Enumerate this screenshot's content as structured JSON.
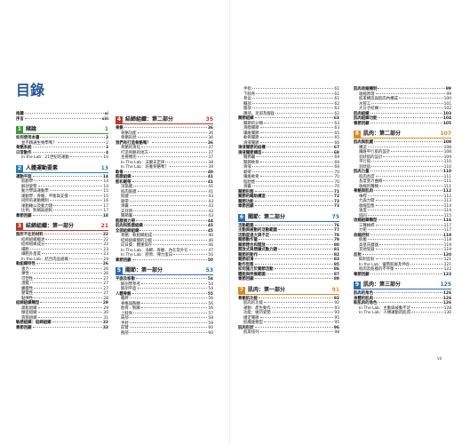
{
  "title": "目錄",
  "page_number": "vii",
  "columns": [
    [
      {
        "label": "推薦",
        "page": "xi"
      },
      {
        "label": "序言",
        "page": "xiii"
      },
      {
        "number": "1",
        "label": "緒論",
        "page": 1,
        "color": "#3a9a3a"
      },
      {
        "label": "如何使用本書",
        "page": 2,
        "items": [
          {
            "label": "並不精通生物學嗎？",
            "page": 2
          }
        ]
      },
      {
        "label": "骨骼系統",
        "page": 3
      },
      {
        "label": "日常動作",
        "page": 4,
        "items": [
          {
            "label": "In the Lab：21世紀的運動",
            "page": 10
          }
        ]
      },
      {
        "number": "2",
        "label": "人體運動要素",
        "page": 13,
        "color": "#2a7fb8"
      },
      {
        "label": "運動平面",
        "page": 14,
        "items": [
          {
            "label": "肌動學",
            "page": 14
          },
          {
            "label": "解剖姿勢",
            "page": 14
          },
          {
            "label": "動力學與運動學",
            "page": 15
          },
          {
            "label": "運動學：骨骼、平衡與支撐",
            "page": 15
          },
          {
            "label": "同時的運動機制",
            "page": 16
          },
          {
            "label": "運動軸以及動力鏈",
            "page": 17
          },
          {
            "label": "比例、對稱與規則",
            "page": 17
          }
        ]
      },
      {
        "label": "章節回顧",
        "page": 18
      },
      {
        "number": "3",
        "label": "結締組織：第一部分",
        "page": 21,
        "color": "#c0392b"
      },
      {
        "label": "無所不在的材料",
        "page": 22,
        "items": [
          {
            "label": "結締組織概述",
            "page": 22
          },
          {
            "label": "結締組織成分",
            "page": 22
          },
          {
            "label": "細胞",
            "page": 23
          },
          {
            "label": "細胞外基質",
            "page": 23
          },
          {
            "label": "In the Lab：結合肉品組織",
            "page": 24
          }
        ]
      },
      {
        "label": "軟組織特性",
        "page": 26,
        "items": [
          {
            "label": "張力",
            "page": 26
          },
          {
            "label": "彈性",
            "page": 26
          },
          {
            "label": "可塑性",
            "page": 27
          },
          {
            "label": "潛變",
            "page": 27
          },
          {
            "label": "觸變性",
            "page": 27
          },
          {
            "label": "壓電性",
            "page": 27
          },
          {
            "label": "黏彈性",
            "page": 28
          }
        ]
      },
      {
        "label": "結締組織類型",
        "page": 29,
        "items": [
          {
            "label": "疏鬆組織",
            "page": 29
          },
          {
            "label": "緻密組織",
            "page": 30
          },
          {
            "label": "液態組織",
            "page": 31
          }
        ]
      },
      {
        "label": "敏感組織：結締組織",
        "page": 32
      },
      {
        "label": "章節回顧",
        "page": 33
      }
    ],
    [
      {
        "number": "4",
        "label": "結締組織：第二部分",
        "page": 35,
        "color": "#c0392b"
      },
      {
        "label": "骨骼",
        "page": 36,
        "items": [
          {
            "label": "骨骼功能",
            "page": 36
          },
          {
            "label": "骨骼形狀",
            "page": 36
          }
        ]
      },
      {
        "label": "我們有打造骨骼嗎？",
        "page": 36,
        "items": [
          {
            "label": "骨骼的演化",
            "page": 37
          },
          {
            "label": "打造骨骼的地方",
            "page": 37
          },
          {
            "label": "主要類別",
            "page": 37
          },
          {
            "label": "In The Lab：沃爾夫定律",
            "page": 38
          },
          {
            "label": "In The Lab：培養骨骼嗎？",
            "page": 39
          }
        ]
      },
      {
        "label": "軟骨",
        "page": 40
      },
      {
        "label": "筋膜組織",
        "page": 41
      },
      {
        "label": "筋和韌帶",
        "page": 41,
        "items": [
          {
            "label": "深筋膜",
            "page": 41
          },
          {
            "label": "肌肉筋膜",
            "page": 41
          },
          {
            "label": "肌腱",
            "page": 43
          },
          {
            "label": "韌帶",
            "page": 43
          },
          {
            "label": "滑囊",
            "page": 43
          },
          {
            "label": "支持帶",
            "page": 43
          },
          {
            "label": "關節囊",
            "page": 43
          }
        ]
      },
      {
        "label": "筋膜張力帶",
        "page": 44
      },
      {
        "label": "肌肉和筋膜組織",
        "page": 45
      },
      {
        "label": "全部結締組織",
        "page": 45,
        "items": [
          {
            "label": "骨骼：軟組織組成",
            "page": 46
          },
          {
            "label": "結締組織間的功能",
            "page": 46
          },
          {
            "label": "向日葵：體重保存",
            "page": 46
          },
          {
            "label": "In The Lab：海綿、骨骼、內在及外在",
            "page": 47
          },
          {
            "label": "In The Lab：膠原、彈力蛋白",
            "page": 50
          }
        ]
      },
      {
        "label": "章節回顧",
        "page": 50
      },
      {
        "number": "5",
        "label": "關節：第一部分",
        "page": 53,
        "color": "#2a6fb8"
      },
      {
        "label": "平面及移動",
        "page": 54,
        "items": [
          {
            "label": "解剖學參考",
            "page": 54
          },
          {
            "label": "解剖平面",
            "page": 54
          }
        ]
      },
      {
        "label": "人體骨骼",
        "page": 55,
        "items": [
          {
            "label": "軀幹",
            "page": 56
          },
          {
            "label": "脊椎與胸廓",
            "page": 56
          },
          {
            "label": "肋骨／胸廓",
            "page": 56
          },
          {
            "label": "上肢骨",
            "page": 57
          },
          {
            "label": "肩部",
            "page": 58
          },
          {
            "label": "手肘",
            "page": 59
          },
          {
            "label": "前臂",
            "page": 60
          },
          {
            "label": "腕部",
            "page": 60
          }
        ]
      }
    ],
    [
      {
        "items": [
          {
            "label": "手指",
            "page": 61
          },
          {
            "label": "下肢骨",
            "page": 61
          },
          {
            "label": "骨盆",
            "page": 61
          },
          {
            "label": "髖部",
            "page": 62
          },
          {
            "label": "膝部",
            "page": 62
          },
          {
            "label": "踝部、足部及腳趾",
            "page": 62
          }
        ]
      },
      {
        "label": "關節組織",
        "page": 63,
        "items": [
          {
            "label": "關節的分類",
            "page": 63
          },
          {
            "label": "滑膜關節",
            "page": 63
          },
          {
            "label": "纖維關節",
            "page": 65
          },
          {
            "label": "軟骨關節",
            "page": 65
          },
          {
            "label": "滑液關節",
            "page": 66
          }
        ]
      },
      {
        "label": "滑液關節的結構",
        "page": 67
      },
      {
        "label": "滑液關節構造",
        "page": 68,
        "items": [
          {
            "label": "關節囊",
            "page": 69
          },
          {
            "label": "關節軟骨",
            "page": 69
          },
          {
            "label": "滑液",
            "page": 69
          },
          {
            "label": "韌帶",
            "page": 70
          },
          {
            "label": "纖維軟骨",
            "page": 70
          },
          {
            "label": "脂肪墊",
            "page": 70
          },
          {
            "label": "滑囊",
            "page": 70
          }
        ]
      },
      {
        "label": "關節形態",
        "page": 71
      },
      {
        "label": "關節的輔助構造",
        "page": 72
      },
      {
        "label": "關節功能",
        "page": 73
      },
      {
        "label": "章節回顧",
        "page": 73
      },
      {
        "number": "6",
        "label": "關節：第二部分",
        "page": 75,
        "color": "#2a6fb8"
      },
      {
        "label": "活動範圍",
        "page": 76
      },
      {
        "label": "主動與被動的活動範圍",
        "page": 77
      },
      {
        "label": "活動度過大與不足",
        "page": 78
      },
      {
        "label": "關節動作量",
        "page": 79
      },
      {
        "label": "關節閉合和開放",
        "page": 80
      },
      {
        "label": "開放式與閉鎖式動力鏈",
        "page": 81
      },
      {
        "label": "關節的動作",
        "page": 82
      },
      {
        "label": "關節前滑",
        "page": 83
      },
      {
        "label": "動作型態",
        "page": 85
      },
      {
        "label": "如何施力於關節活動",
        "page": 86
      },
      {
        "label": "體能與伸展範圍",
        "page": 87
      },
      {
        "label": "章節回顧",
        "page": 89
      },
      {
        "number": "7",
        "label": "肌肉：第一部分",
        "page": 91,
        "color": "#e08a1e"
      },
      {
        "label": "骨骼肌功能",
        "page": 92,
        "items": [
          {
            "label": "肌肉的功能",
            "page": 92
          },
          {
            "label": "運動：產生動作",
            "page": 93
          },
          {
            "label": "功能：維持姿勢",
            "page": 93
          },
          {
            "label": "穩定關節",
            "page": 95
          },
          {
            "label": "肌纖維類型",
            "page": 95
          }
        ]
      },
      {
        "label": "肌肉形狀",
        "page": 96,
        "items": [
          {
            "label": "肌束排列",
            "page": 98
          }
        ]
      }
    ],
    [
      {
        "label": "肌肉收縮機制",
        "page": 99,
        "items": [
          {
            "label": "收縮原理",
            "page": 99
          },
          {
            "label": "肌束構造與肌肉內構成",
            "page": 100
          },
          {
            "label": "水管工",
            "page": 101
          },
          {
            "label": "大分子結構",
            "page": 102
          }
        ]
      },
      {
        "label": "肌肉組織",
        "page": 103
      },
      {
        "label": "肌肉組織功能",
        "page": 104
      },
      {
        "label": "章節回顧",
        "page": 105
      },
      {
        "number": "8",
        "label": "肌肉：第二部分",
        "page": 107,
        "color": "#e08a1e"
      },
      {
        "label": "肌肉與肌腱",
        "page": 108,
        "items": [
          {
            "label": "構造",
            "page": 108
          },
          {
            "label": "纖維平行肌的設計",
            "page": 108
          },
          {
            "label": "羽狀肌的設計",
            "page": 109
          },
          {
            "label": "平行肌",
            "page": 110
          },
          {
            "label": "羽狀肌",
            "page": 110
          }
        ]
      },
      {
        "label": "肌肉力量",
        "page": 110,
        "items": [
          {
            "label": "肌肉長度",
            "page": 111
          },
          {
            "label": "長度張力曲線",
            "page": 111
          },
          {
            "label": "收縮的種類",
            "page": 111
          }
        ]
      },
      {
        "label": "骨骼與肌肉",
        "page": 112,
        "items": [
          {
            "label": "槓桿",
            "page": 112
          },
          {
            "label": "力與力臂",
            "page": 113
          },
          {
            "label": "收縮型態",
            "page": 114
          },
          {
            "label": "速度",
            "page": 114
          },
          {
            "label": "協同",
            "page": 115
          }
        ]
      },
      {
        "label": "收縮組織類型",
        "page": 116,
        "items": [
          {
            "label": "三種槓桿",
            "page": 117
          },
          {
            "label": "力矩",
            "page": 117
          }
        ]
      },
      {
        "label": "收縮控制",
        "page": 118,
        "items": [
          {
            "label": "肌梭",
            "page": 118
          },
          {
            "label": "高基氏腱器",
            "page": 119
          },
          {
            "label": "其他受器",
            "page": 119
          }
        ]
      },
      {
        "label": "反射",
        "page": 120,
        "items": [
          {
            "label": "抑制反射",
            "page": 121
          },
          {
            "label": "In the Lab：優勢肌群及伸長",
            "page": 121
          },
          {
            "label": "肌肉及筋膜的不平衡",
            "page": 122
          }
        ]
      },
      {
        "label": "章節回顧",
        "page": 123
      },
      {
        "number": "9",
        "label": "肌肉：第三部分",
        "page": 125,
        "color": "#2a6fb8"
      },
      {
        "label": "肌肉的角色",
        "page": 126
      },
      {
        "label": "身體的肌肉",
        "page": 126
      },
      {
        "label": "新肌肉的角色",
        "page": 126,
        "items": [
          {
            "label": "In The Lab：主動與被動不足",
            "page": 128
          },
          {
            "label": "In The Lab：人類運動的肌肉",
            "page": 130
          }
        ]
      }
    ]
  ]
}
